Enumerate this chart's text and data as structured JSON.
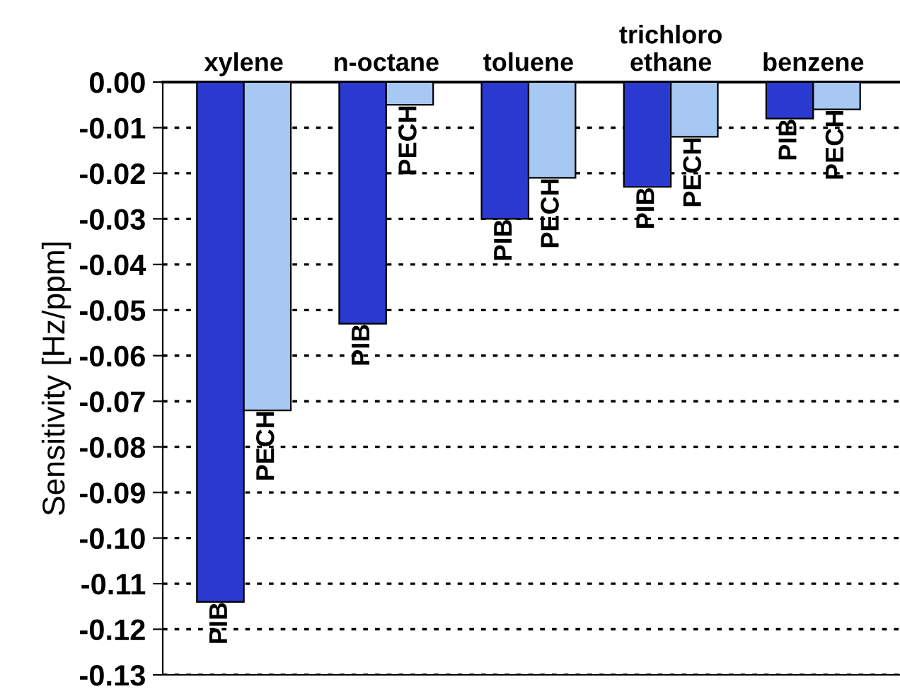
{
  "chart_data": {
    "type": "bar",
    "ylabel": "Sensitivity [Hz/ppm]",
    "categories": [
      "xylene",
      "n-octane",
      "toluene",
      "trichloro\nethane",
      "benzene"
    ],
    "series": [
      {
        "name": "PIB",
        "color": "#2a3ad0",
        "values": [
          -0.114,
          -0.053,
          -0.03,
          -0.023,
          -0.008
        ]
      },
      {
        "name": "PECH",
        "color": "#a6c8f2",
        "values": [
          -0.072,
          -0.005,
          -0.021,
          -0.012,
          -0.006
        ]
      }
    ],
    "ylim": [
      -0.13,
      0.0
    ],
    "yticks": [
      {
        "value": 0.0,
        "label": "0.00"
      },
      {
        "value": -0.01,
        "label": "-0.01"
      },
      {
        "value": -0.02,
        "label": "-0.02"
      },
      {
        "value": -0.03,
        "label": "-0.03"
      },
      {
        "value": -0.04,
        "label": "-0.04"
      },
      {
        "value": -0.05,
        "label": "-0.05"
      },
      {
        "value": -0.06,
        "label": "-0.06"
      },
      {
        "value": -0.07,
        "label": "-0.07"
      },
      {
        "value": -0.08,
        "label": "-0.08"
      },
      {
        "value": -0.09,
        "label": "-0.09"
      },
      {
        "value": -0.1,
        "label": "-0.10"
      },
      {
        "value": -0.11,
        "label": "-0.11"
      },
      {
        "value": -0.12,
        "label": "-0.12"
      },
      {
        "value": -0.13,
        "label": "-0.13"
      }
    ],
    "grid": "y",
    "line_style": "dotted",
    "legend": false
  }
}
